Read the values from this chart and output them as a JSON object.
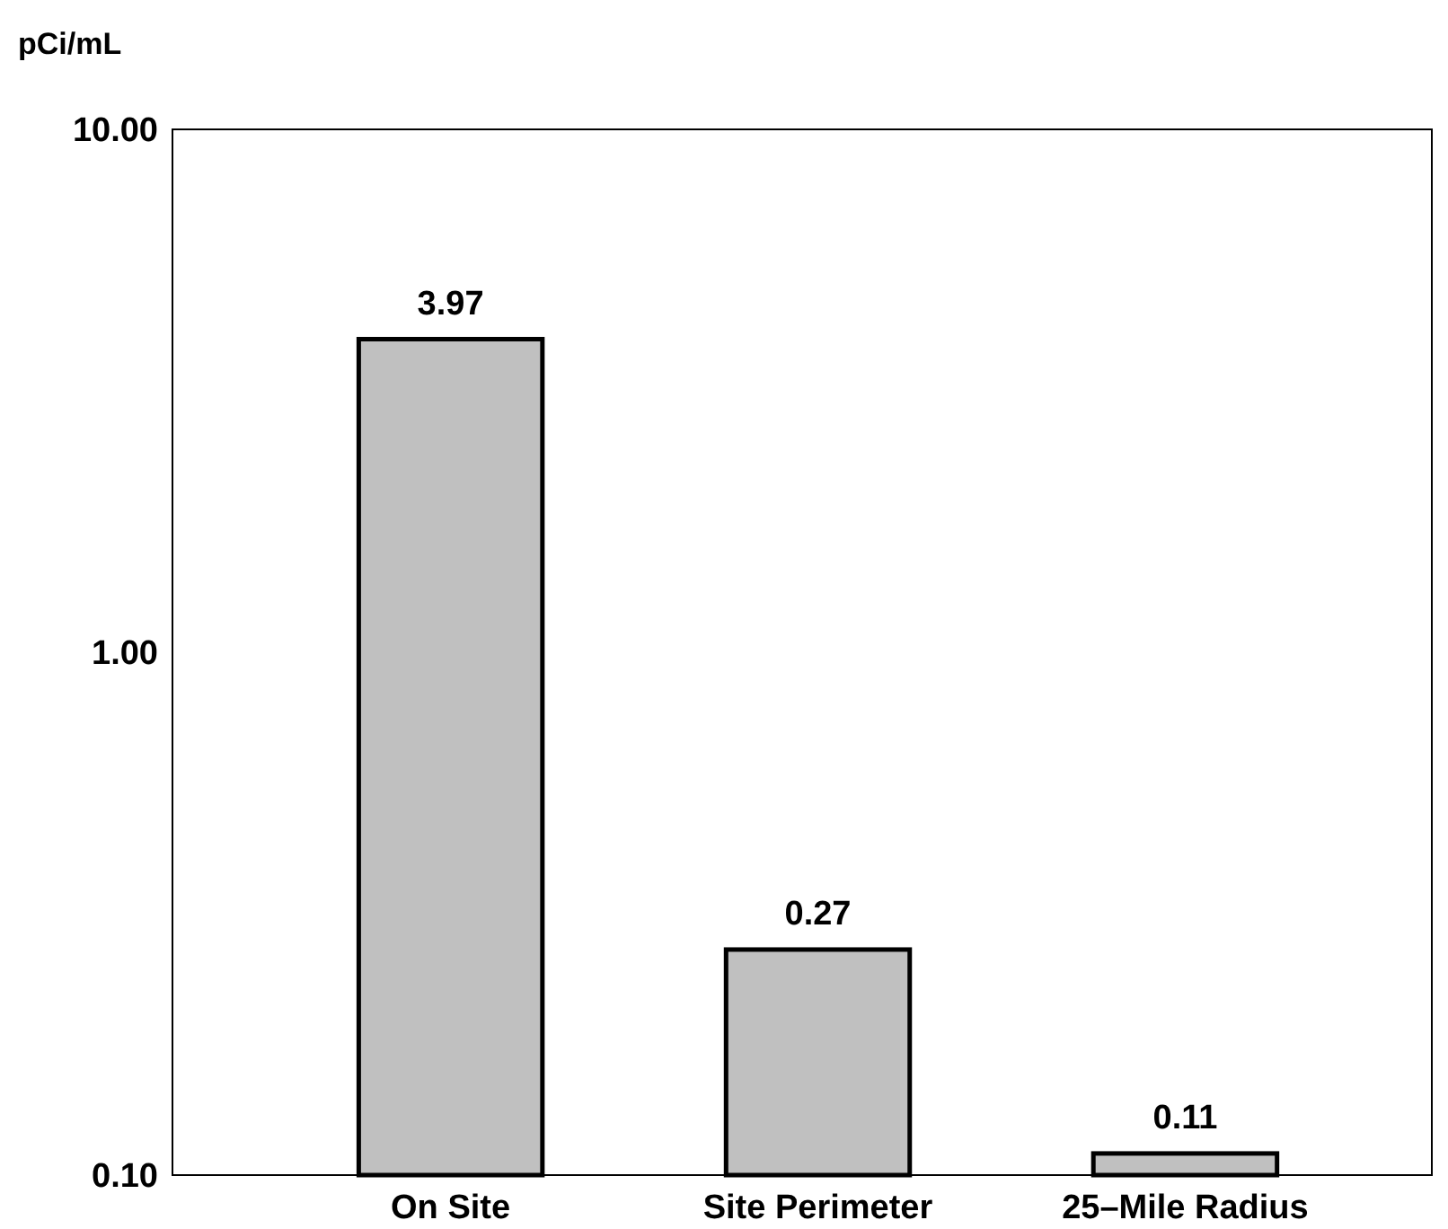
{
  "chart_data": {
    "type": "bar",
    "ylabel": "pCi/mL",
    "categories": [
      "On Site",
      "Site Perimeter",
      "25–Mile Radius"
    ],
    "values": [
      3.97,
      0.27,
      0.11
    ],
    "color": "#c0c0c0",
    "log": true,
    "ylim": [
      0.1,
      10
    ],
    "yticks": [
      {
        "value": 0.1,
        "label": "0.10"
      },
      {
        "value": 1,
        "label": "1.00"
      },
      {
        "value": 10,
        "label": "10.00"
      }
    ],
    "data_labels": true,
    "grid": false
  }
}
